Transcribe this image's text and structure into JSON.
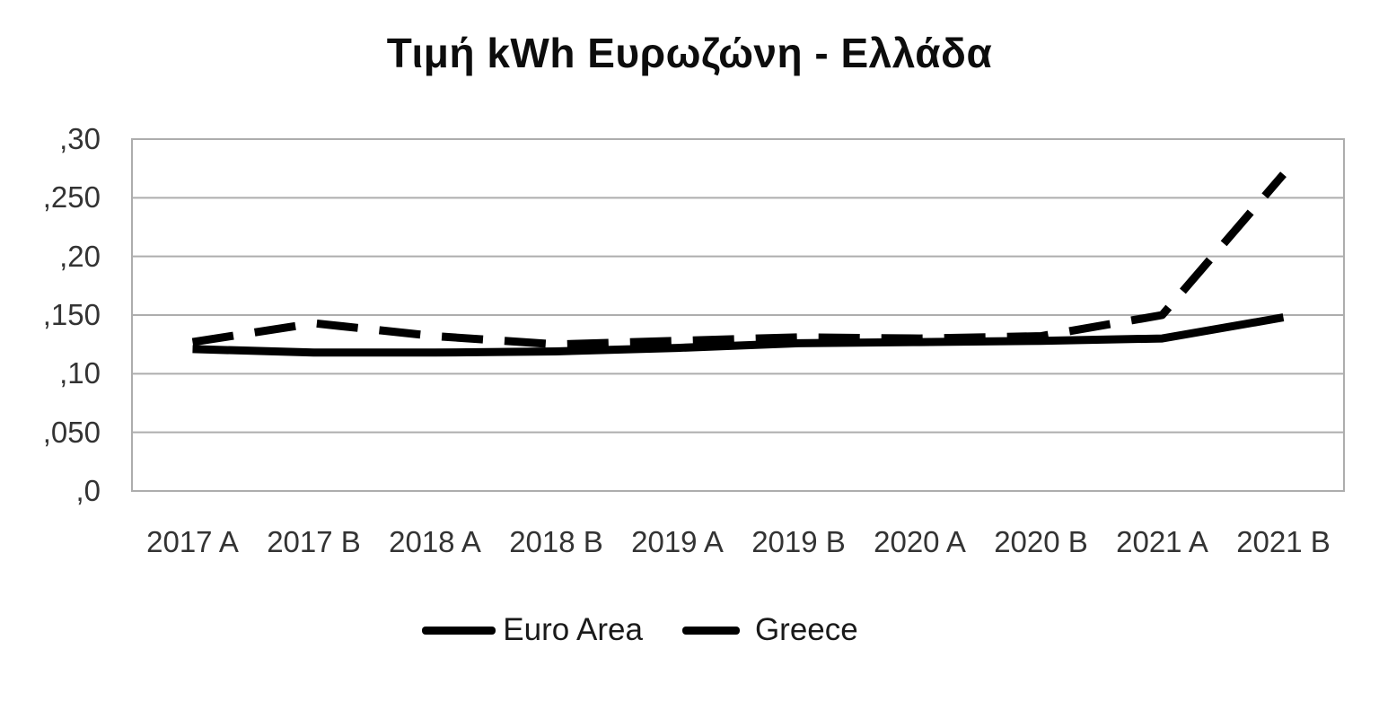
{
  "chart_data": {
    "type": "line",
    "title": "Τιμή kWh Ευρωζώνη - Ελλάδα",
    "categories": [
      "2017 A",
      "2017 B",
      "2018 A",
      "2018 B",
      "2019 A",
      "2019 B",
      "2020 A",
      "2020 B",
      "2021 A",
      "2021 B"
    ],
    "series": [
      {
        "name": "Euro Area",
        "line_style": "solid",
        "color": "#000000",
        "values": [
          0.121,
          0.118,
          0.118,
          0.119,
          0.122,
          0.126,
          0.127,
          0.128,
          0.13,
          0.148
        ]
      },
      {
        "name": "Greece",
        "line_style": "dashed",
        "color": "#000000",
        "values": [
          0.127,
          0.143,
          0.132,
          0.125,
          0.128,
          0.131,
          0.13,
          0.132,
          0.15,
          0.27
        ]
      }
    ],
    "yaxis": {
      "min": 0,
      "max": 0.3,
      "tick_values": [
        0,
        0.05,
        0.1,
        0.15,
        0.2,
        0.25,
        0.3
      ],
      "tick_labels": [
        ",0",
        ",050",
        ",10",
        ",150",
        ",20",
        ",250",
        ",30"
      ]
    },
    "xlabel": "",
    "ylabel": "",
    "grid": "horizontal",
    "legend_position": "bottom",
    "colors": {
      "line": "#000000",
      "gridline": "#adadad",
      "tick_text": "#333333",
      "title_text": "#0d0d0d",
      "background": "#ffffff"
    }
  }
}
